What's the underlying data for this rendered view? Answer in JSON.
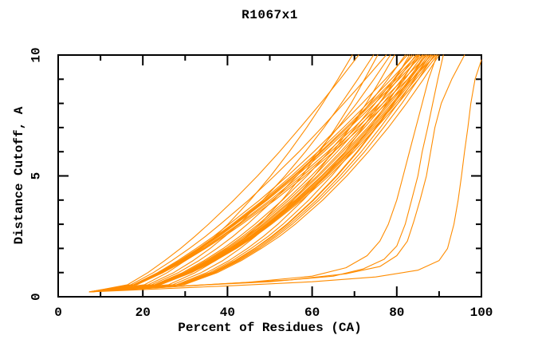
{
  "figure": {
    "title": "R1067x1"
  },
  "chart_data": {
    "type": "line",
    "title": "R1067x1",
    "xlabel": "Percent of Residues (CA)",
    "ylabel": "Distance Cutoff, A",
    "xlim": [
      0,
      100
    ],
    "ylim": [
      0,
      10
    ],
    "grid": false,
    "legend": "none",
    "frame": "box-with-inward-ticks",
    "line_color": "#ff8c00",
    "frame_color": "#000000",
    "background_color": "#ffffff",
    "x_major_ticks": [
      0,
      20,
      40,
      60,
      80,
      100
    ],
    "x_minor_ticks": [
      10,
      30,
      50,
      70,
      90
    ],
    "y_major_ticks": [
      0,
      5,
      10
    ],
    "y_minor_ticks": [
      1,
      2,
      3,
      4,
      6,
      7,
      8,
      9
    ],
    "x_tick_labels": [
      "0",
      "20",
      "40",
      "60",
      "80",
      "100"
    ],
    "y_tick_labels": [
      "0",
      "5",
      "10"
    ],
    "description": "Cumulative curves: percent of CA residues (x) within a distance cutoff in Angstroms (y); one orange curve per model, all starting near (7.4, 0.2)",
    "y_levels": [
      0.2,
      0.5,
      1,
      1.5,
      2,
      2.5,
      3,
      4,
      5,
      6,
      7,
      8,
      9,
      10
    ],
    "series": [
      {
        "x": [
          7.4,
          20.4,
          25.8,
          30.1,
          33.8,
          37.1,
          40.1,
          45.4,
          50.2,
          54.6,
          58.7,
          62.5,
          66.1,
          69.5
        ]
      },
      {
        "x": [
          7.4,
          16.4,
          21.2,
          25.2,
          28.9,
          32.3,
          35.5,
          41.5,
          47.1,
          52.3,
          57.2,
          62.0,
          66.6,
          71.0
        ]
      },
      {
        "x": [
          7.4,
          21.3,
          27.3,
          31.9,
          35.9,
          39.4,
          42.7,
          48.4,
          53.6,
          58.4,
          62.8,
          66.9,
          70.8,
          74.5
        ]
      },
      {
        "x": [
          7.4,
          26.1,
          32.4,
          37.2,
          41.0,
          44.5,
          47.6,
          52.9,
          57.6,
          61.8,
          65.6,
          69.2,
          72.4,
          75.5
        ]
      },
      {
        "x": [
          7.4,
          17.2,
          22.5,
          26.9,
          31.0,
          34.8,
          38.3,
          45.0,
          51.1,
          56.9,
          62.3,
          67.5,
          72.6,
          77.5
        ]
      },
      {
        "x": [
          7.4,
          22.1,
          28.4,
          33.3,
          37.5,
          41.3,
          44.7,
          50.9,
          56.4,
          61.4,
          66.1,
          70.5,
          74.6,
          78.5
        ]
      },
      {
        "x": [
          7.4,
          27.1,
          33.8,
          38.9,
          43.0,
          46.6,
          49.9,
          55.6,
          60.5,
          65.0,
          69.0,
          72.8,
          76.2,
          79.5
        ]
      },
      {
        "x": [
          7.4,
          22.8,
          29.4,
          34.5,
          39.0,
          42.9,
          46.5,
          53.0,
          58.8,
          64.0,
          69.0,
          73.6,
          77.9,
          82.0
        ]
      },
      {
        "x": [
          7.4,
          17.8,
          23.5,
          28.3,
          32.6,
          36.7,
          40.4,
          47.6,
          54.2,
          60.4,
          66.2,
          71.8,
          77.3,
          82.5
        ]
      },
      {
        "x": [
          7.4,
          28.0,
          35.1,
          40.4,
          44.7,
          48.5,
          51.9,
          57.9,
          63.1,
          67.8,
          72.0,
          75.9,
          79.6,
          83.0
        ]
      },
      {
        "x": [
          7.4,
          23.1,
          29.8,
          35.0,
          39.6,
          43.6,
          47.3,
          53.9,
          59.8,
          65.2,
          70.2,
          74.9,
          79.3,
          83.5
        ]
      },
      {
        "x": [
          7.4,
          18.0,
          23.8,
          28.7,
          33.1,
          37.2,
          41.1,
          48.4,
          55.1,
          61.4,
          67.4,
          73.1,
          78.7,
          84.0
        ]
      },
      {
        "x": [
          7.4,
          23.3,
          30.1,
          35.4,
          40.0,
          44.1,
          47.8,
          54.5,
          60.5,
          65.9,
          71.0,
          75.8,
          80.3,
          84.5
        ]
      },
      {
        "x": [
          7.4,
          18.1,
          23.9,
          28.9,
          33.4,
          37.5,
          41.4,
          48.8,
          55.6,
          62.0,
          68.0,
          73.8,
          79.4,
          84.8
        ]
      },
      {
        "x": [
          7.4,
          28.5,
          35.8,
          41.2,
          45.6,
          49.6,
          53.1,
          59.2,
          64.6,
          69.4,
          73.7,
          77.7,
          81.5,
          85.0
        ]
      },
      {
        "x": [
          7.4,
          18.1,
          24.0,
          29.0,
          33.5,
          37.7,
          41.6,
          49.1,
          55.9,
          62.3,
          68.4,
          74.2,
          79.9,
          85.3
        ]
      },
      {
        "x": [
          7.4,
          23.4,
          30.4,
          35.7,
          40.4,
          44.6,
          48.3,
          55.1,
          61.2,
          66.7,
          71.8,
          76.7,
          81.2,
          85.5
        ]
      },
      {
        "x": [
          7.4,
          18.2,
          24.2,
          29.2,
          33.7,
          38.0,
          41.9,
          49.4,
          56.3,
          62.8,
          68.9,
          74.8,
          80.5,
          86.0
        ]
      },
      {
        "x": [
          7.4,
          23.6,
          30.6,
          36.0,
          40.7,
          44.9,
          48.7,
          55.5,
          61.6,
          67.2,
          72.4,
          77.3,
          81.9,
          86.2
        ]
      },
      {
        "x": [
          7.4,
          28.9,
          36.3,
          41.8,
          46.4,
          50.4,
          54.0,
          60.2,
          65.7,
          70.6,
          75.0,
          79.1,
          82.9,
          86.5
        ]
      },
      {
        "x": [
          7.4,
          29.0,
          36.4,
          42.0,
          46.5,
          50.6,
          54.2,
          60.4,
          65.9,
          70.8,
          75.2,
          79.4,
          83.2,
          86.8
        ]
      },
      {
        "x": [
          7.4,
          23.7,
          30.8,
          36.3,
          41.0,
          45.3,
          49.1,
          56.0,
          62.2,
          67.8,
          73.1,
          78.0,
          82.6,
          87.0
        ]
      },
      {
        "x": [
          7.4,
          18.4,
          24.4,
          29.5,
          34.1,
          38.5,
          42.5,
          50.1,
          57.1,
          63.7,
          69.9,
          75.8,
          81.6,
          87.2
        ]
      },
      {
        "x": [
          7.4,
          23.8,
          30.9,
          36.4,
          41.2,
          45.5,
          49.4,
          56.3,
          62.5,
          68.2,
          73.5,
          78.4,
          83.1,
          87.5
        ]
      },
      {
        "x": [
          7.4,
          29.3,
          36.8,
          42.4,
          47.0,
          51.1,
          54.7,
          61.1,
          66.6,
          71.6,
          76.1,
          80.3,
          84.2,
          87.8
        ]
      },
      {
        "x": [
          7.4,
          23.9,
          31.1,
          36.6,
          41.5,
          45.7,
          49.6,
          56.6,
          62.9,
          68.6,
          73.9,
          78.9,
          83.6,
          88.0
        ]
      },
      {
        "x": [
          7.4,
          18.5,
          24.6,
          29.8,
          34.5,
          38.8,
          42.9,
          50.6,
          57.7,
          64.4,
          70.6,
          76.7,
          82.6,
          88.2
        ]
      },
      {
        "x": [
          7.4,
          24.0,
          31.2,
          36.8,
          41.7,
          46.0,
          49.9,
          56.9,
          63.2,
          68.9,
          74.3,
          79.3,
          84.0,
          88.5
        ]
      },
      {
        "x": [
          7.4,
          29.5,
          37.1,
          42.8,
          47.5,
          51.6,
          55.3,
          61.7,
          67.3,
          72.4,
          76.9,
          81.2,
          85.1,
          88.8
        ]
      },
      {
        "x": [
          7.4,
          24.1,
          31.3,
          37.0,
          41.9,
          46.2,
          50.1,
          57.2,
          63.5,
          69.3,
          74.7,
          79.8,
          84.5,
          89.0
        ]
      },
      {
        "x": [
          7.4,
          18.6,
          24.8,
          30.1,
          34.8,
          39.2,
          43.4,
          51.2,
          58.3,
          65.1,
          71.5,
          77.6,
          83.6,
          89.3
        ]
      },
      {
        "x": [
          7.4,
          24.2,
          31.5,
          37.2,
          42.1,
          46.5,
          50.4,
          57.6,
          64.0,
          69.8,
          75.2,
          80.3,
          85.1,
          89.6
        ]
      },
      {
        "x": [
          7.4,
          29.8,
          37.6,
          43.3,
          48.0,
          52.3,
          56.0,
          62.5,
          68.2,
          73.3,
          78.0,
          82.3,
          86.3,
          90.0
        ]
      },
      {
        "points": [
          [
            7.4,
            0.2
          ],
          [
            25,
            0.4
          ],
          [
            45,
            0.6
          ],
          [
            60,
            0.85
          ],
          [
            68,
            1.2
          ],
          [
            73,
            1.7
          ],
          [
            76,
            2.3
          ],
          [
            78,
            3
          ],
          [
            80,
            4
          ],
          [
            81.5,
            5
          ],
          [
            83,
            6
          ],
          [
            84.5,
            7
          ],
          [
            86,
            8
          ],
          [
            87.5,
            9
          ],
          [
            89.5,
            10
          ]
        ]
      },
      {
        "points": [
          [
            7.4,
            0.2
          ],
          [
            30,
            0.45
          ],
          [
            50,
            0.62
          ],
          [
            65,
            0.85
          ],
          [
            72,
            1.15
          ],
          [
            77,
            1.55
          ],
          [
            80,
            2.1
          ],
          [
            82,
            3
          ],
          [
            83.5,
            4
          ],
          [
            85,
            5
          ],
          [
            86,
            6
          ],
          [
            87.3,
            7
          ],
          [
            88.5,
            8
          ],
          [
            89.7,
            9
          ],
          [
            91,
            10
          ]
        ]
      },
      {
        "points": [
          [
            7.4,
            0.2
          ],
          [
            35,
            0.5
          ],
          [
            55,
            0.7
          ],
          [
            68,
            0.95
          ],
          [
            76,
            1.25
          ],
          [
            80,
            1.7
          ],
          [
            82.5,
            2.3
          ],
          [
            84,
            3.1
          ],
          [
            85.5,
            4
          ],
          [
            87,
            5
          ],
          [
            88,
            6
          ],
          [
            89,
            7
          ],
          [
            90.5,
            8
          ],
          [
            93,
            9
          ],
          [
            96,
            10
          ]
        ]
      },
      {
        "points": [
          [
            7.4,
            0.2
          ],
          [
            40,
            0.45
          ],
          [
            60,
            0.62
          ],
          [
            75,
            0.82
          ],
          [
            85,
            1.1
          ],
          [
            90,
            1.5
          ],
          [
            92,
            2
          ],
          [
            93.5,
            3
          ],
          [
            94.5,
            4
          ],
          [
            95.3,
            5
          ],
          [
            96,
            6
          ],
          [
            96.8,
            7
          ],
          [
            97.5,
            8
          ],
          [
            98.5,
            9
          ],
          [
            100,
            9.8
          ]
        ]
      }
    ]
  }
}
